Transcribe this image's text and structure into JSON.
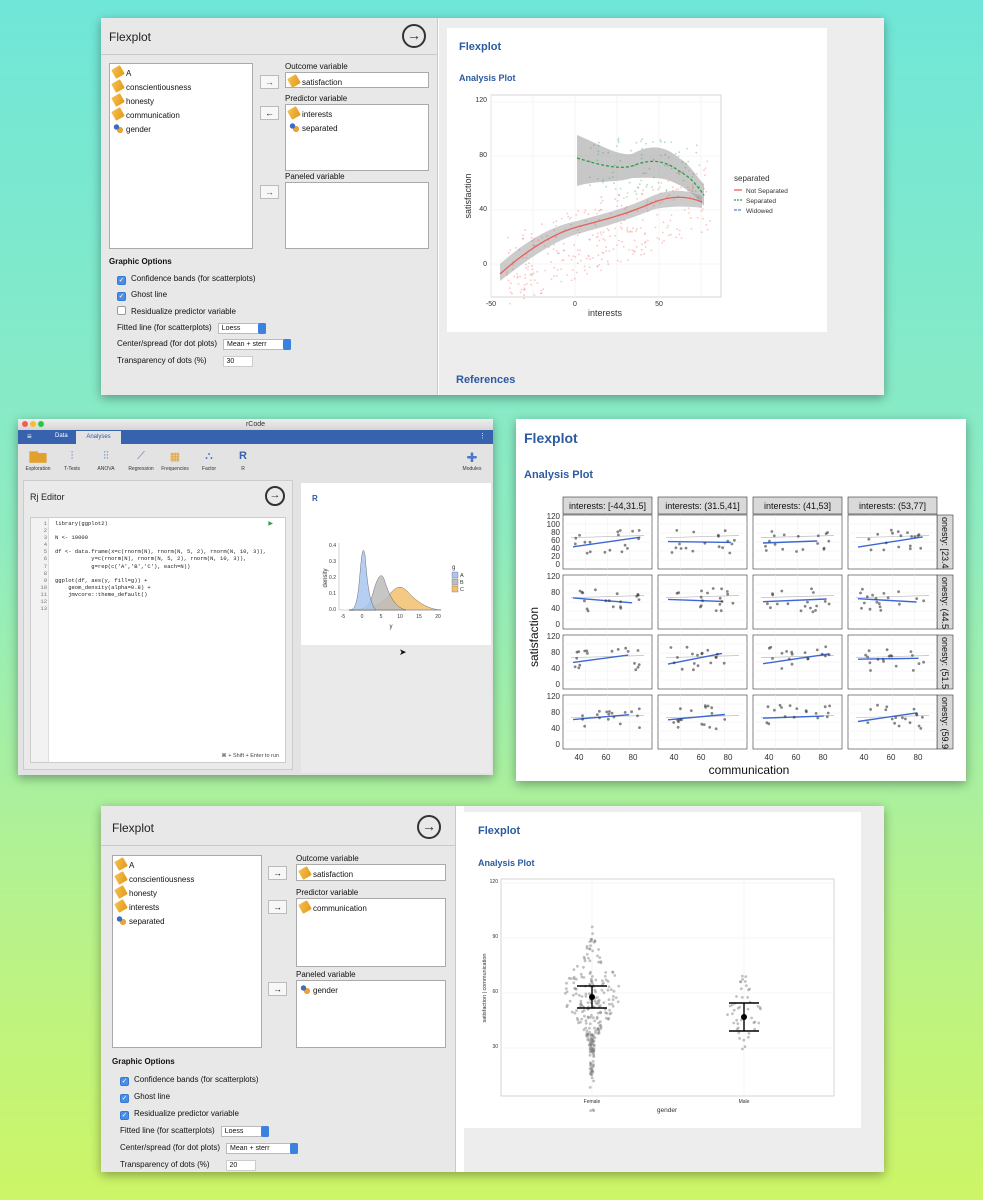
{
  "panel1": {
    "title": "Flexplot",
    "variables": [
      "A",
      "conscientiousness",
      "honesty",
      "communication",
      "gender"
    ],
    "variable_icons": [
      "scale",
      "scale",
      "scale",
      "scale",
      "nominal"
    ],
    "outcome_label": "Outcome variable",
    "outcome_value": "satisfaction",
    "predictor_label": "Predictor variable",
    "predictors": [
      "interests",
      "separated"
    ],
    "paneled_label": "Paneled variable",
    "graphic_options": "Graphic Options",
    "conf": "Confidence bands (for scatterplots)",
    "conf_checked": true,
    "ghost": "Ghost line",
    "ghost_checked": true,
    "resid": "Residualize predictor variable",
    "resid_checked": false,
    "fitted_label": "Fitted line (for scatterplots)",
    "fitted_value": "Loess",
    "center_label": "Center/spread (for dot plots)",
    "center_value": "Mean + sterr",
    "transp_label": "Transparency of dots (%)",
    "transp_value": "30",
    "result_title": "Flexplot",
    "plot_title": "Analysis Plot",
    "references": "References",
    "plot": {
      "xlabel": "interests",
      "ylabel": "satisfaction",
      "xticks": [
        "-50",
        "0",
        "50"
      ],
      "yticks": [
        "0",
        "40",
        "80",
        "120"
      ],
      "legend_title": "separated",
      "legend": [
        "Not Separated",
        "Separated",
        "Widowed"
      ]
    }
  },
  "panel2": {
    "window_title": "rCode",
    "tabs": [
      "Data",
      "Analyses"
    ],
    "tools": [
      "Exploration",
      "T-Tests",
      "ANOVA",
      "Regression",
      "Frequencies",
      "Factor",
      "R"
    ],
    "modules": "Modules",
    "editor_title": "Rj Editor",
    "code_lines": [
      "library(ggplot2)",
      "",
      "N <- 10000",
      "",
      "df <- data.frame(x=c(rnorm(N), rnorm(N, 5, 2), rnorm(N, 10, 3)),",
      "           y=c(rnorm(N), rnorm(N, 5, 2), rnorm(N, 10, 3)),",
      "           g=rep(c('A','B','C'), each=N))",
      "",
      "ggplot(df, aes(y, fill=g)) +",
      "    geom_density(alpha=0.8) +",
      "    jmvcore::theme_default()",
      ""
    ],
    "line_numbers": [
      "1",
      "2",
      "3",
      "4",
      "5",
      "6",
      "7",
      "8",
      "9",
      "10",
      "11",
      "12",
      "13"
    ],
    "run_hint": "⌘ + Shift + Enter to run",
    "result_title": "R",
    "plot": {
      "xlabel": "y",
      "ylabel": "density",
      "xticks": [
        "-5",
        "0",
        "5",
        "10",
        "15",
        "20"
      ],
      "yticks": [
        "0.0",
        "0.1",
        "0.2",
        "0.3",
        "0.4"
      ],
      "legend_title": "g",
      "legend": [
        "A",
        "B",
        "C"
      ]
    }
  },
  "panel3": {
    "title": "Flexplot",
    "plot_title": "Analysis Plot",
    "col_strips": [
      "interests: [-44,31.5]",
      "interests: (31.5,41]",
      "interests: (41,53]",
      "interests: (53,77]"
    ],
    "row_strips": [
      "onesty: [23.4",
      "onesty: (44.5",
      "onesty: (51.5",
      "onesty: (59.9"
    ],
    "ylabel": "satisfaction",
    "xlabel": "communication",
    "yticks": [
      "0",
      "20",
      "40",
      "60",
      "80",
      "100",
      "120"
    ],
    "xticks": [
      "40",
      "60",
      "80"
    ]
  },
  "panel4": {
    "title": "Flexplot",
    "variables": [
      "A",
      "conscientiousness",
      "honesty",
      "interests",
      "separated"
    ],
    "variable_icons": [
      "scale",
      "scale",
      "scale",
      "scale",
      "nominal"
    ],
    "outcome_label": "Outcome variable",
    "outcome_value": "satisfaction",
    "predictor_label": "Predictor variable",
    "predictors": [
      "communication"
    ],
    "paneled_label": "Paneled variable",
    "paneled": [
      "gender"
    ],
    "graphic_options": "Graphic Options",
    "conf": "Confidence bands (for scatterplots)",
    "conf_checked": true,
    "ghost": "Ghost line",
    "ghost_checked": true,
    "resid": "Residualize predictor variable",
    "resid_checked": true,
    "fitted_label": "Fitted line (for scatterplots)",
    "fitted_value": "Loess",
    "center_label": "Center/spread (for dot plots)",
    "center_value": "Mean + sterr",
    "transp_label": "Transparency of dots (%)",
    "transp_value": "20",
    "result_title": "Flexplot",
    "plot_title": "Analysis Plot",
    "plot": {
      "xlabel": "gender",
      "ylabel": "satisfaction | communication",
      "categories": [
        "Female",
        "Male"
      ],
      "yticks": [
        "30",
        "60",
        "90",
        "120"
      ]
    }
  },
  "colors": {
    "accent": "#2c5aa0",
    "not_separated": "#e8605a",
    "separated": "#2c9e45",
    "widowed": "#5c7cc9",
    "fit_blue": "#3d67d6",
    "density_A": "#a9c6ef",
    "density_B": "#bdbdbd",
    "density_C": "#f3c06f"
  }
}
